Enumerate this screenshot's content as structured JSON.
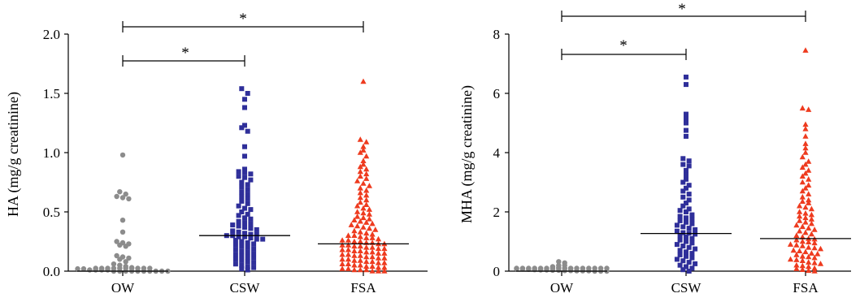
{
  "figure": {
    "panels": [
      {
        "ylabel": "HA (mg/g creatinine)",
        "categories": [
          "OW",
          "CSW",
          "FSA"
        ],
        "yticks": [
          "0.0",
          "0.5",
          "1.0",
          "1.5",
          "2.0"
        ],
        "significance": [
          {
            "from": "OW",
            "to": "FSA",
            "label": "*"
          },
          {
            "from": "OW",
            "to": "CSW",
            "label": "*"
          }
        ]
      },
      {
        "ylabel": "MHA (mg/g creatinine)",
        "categories": [
          "OW",
          "CSW",
          "FSA"
        ],
        "yticks": [
          "0",
          "2",
          "4",
          "6",
          "8"
        ],
        "significance": [
          {
            "from": "OW",
            "to": "FSA",
            "label": "*"
          },
          {
            "from": "OW",
            "to": "CSW",
            "label": "*"
          }
        ]
      }
    ]
  },
  "chart_data": [
    {
      "type": "scatter",
      "title": "",
      "xlabel": "",
      "ylabel": "HA (mg/g creatinine)",
      "ylim": [
        0,
        2.0
      ],
      "categories": [
        "OW",
        "CSW",
        "FSA"
      ],
      "series_colors": {
        "OW": "#8c8c8c",
        "CSW": "#2f2f9a",
        "FSA": "#ee3b1f"
      },
      "markers": {
        "OW": "circle",
        "CSW": "square",
        "FSA": "triangle"
      },
      "series": [
        {
          "category": "OW",
          "median": 0.0,
          "values": [
            0.98,
            0.67,
            0.65,
            0.63,
            0.62,
            0.61,
            0.43,
            0.33,
            0.25,
            0.24,
            0.23,
            0.22,
            0.21,
            0.13,
            0.12,
            0.11,
            0.1,
            0.08,
            0.06,
            0.05,
            0.04,
            0.03,
            0.02,
            0.02,
            0.01,
            0.01,
            0.01,
            0.01,
            0.0,
            0.0,
            0.0,
            0.0,
            0.0,
            0.0,
            0.0,
            0.0,
            0.0,
            0.0,
            0.0,
            0.0,
            0.0,
            0.0,
            0.0,
            0.0,
            0.0,
            0.0,
            0.0,
            0.0
          ]
        },
        {
          "category": "CSW",
          "median": 0.3,
          "values": [
            1.54,
            1.5,
            1.45,
            1.38,
            1.23,
            1.21,
            1.18,
            1.05,
            0.97,
            0.86,
            0.84,
            0.83,
            0.82,
            0.8,
            0.79,
            0.77,
            0.75,
            0.73,
            0.71,
            0.69,
            0.67,
            0.65,
            0.63,
            0.61,
            0.59,
            0.57,
            0.55,
            0.53,
            0.52,
            0.5,
            0.48,
            0.47,
            0.45,
            0.44,
            0.42,
            0.41,
            0.4,
            0.39,
            0.38,
            0.37,
            0.36,
            0.35,
            0.34,
            0.33,
            0.32,
            0.31,
            0.31,
            0.3,
            0.3,
            0.29,
            0.29,
            0.28,
            0.27,
            0.27,
            0.26,
            0.25,
            0.24,
            0.23,
            0.22,
            0.21,
            0.2,
            0.19,
            0.18,
            0.17,
            0.16,
            0.15,
            0.14,
            0.13,
            0.12,
            0.11,
            0.1,
            0.09,
            0.08,
            0.07,
            0.06,
            0.05,
            0.04,
            0.03,
            0.02,
            0.01
          ]
        },
        {
          "category": "FSA",
          "median": 0.23,
          "values": [
            1.6,
            1.11,
            1.09,
            1.05,
            1.02,
            1.0,
            0.97,
            0.93,
            0.9,
            0.88,
            0.86,
            0.84,
            0.82,
            0.8,
            0.78,
            0.76,
            0.74,
            0.72,
            0.7,
            0.68,
            0.66,
            0.64,
            0.62,
            0.6,
            0.58,
            0.56,
            0.55,
            0.53,
            0.52,
            0.5,
            0.49,
            0.48,
            0.46,
            0.45,
            0.44,
            0.43,
            0.42,
            0.41,
            0.4,
            0.39,
            0.38,
            0.37,
            0.36,
            0.35,
            0.34,
            0.33,
            0.32,
            0.31,
            0.3,
            0.3,
            0.29,
            0.28,
            0.28,
            0.27,
            0.26,
            0.26,
            0.25,
            0.25,
            0.24,
            0.24,
            0.23,
            0.23,
            0.22,
            0.22,
            0.21,
            0.21,
            0.2,
            0.2,
            0.19,
            0.19,
            0.18,
            0.18,
            0.17,
            0.17,
            0.16,
            0.16,
            0.15,
            0.15,
            0.14,
            0.14,
            0.13,
            0.13,
            0.12,
            0.12,
            0.11,
            0.11,
            0.1,
            0.1,
            0.09,
            0.09,
            0.08,
            0.08,
            0.07,
            0.07,
            0.06,
            0.06,
            0.05,
            0.05,
            0.04,
            0.04,
            0.03,
            0.03,
            0.02,
            0.02,
            0.01,
            0.01,
            0.01,
            0.0,
            0.0,
            0.0
          ]
        }
      ]
    },
    {
      "type": "scatter",
      "title": "",
      "xlabel": "",
      "ylabel": "MHA (mg/g creatinine)",
      "ylim": [
        0,
        8
      ],
      "categories": [
        "OW",
        "CSW",
        "FSA"
      ],
      "series_colors": {
        "OW": "#8c8c8c",
        "CSW": "#2f2f9a",
        "FSA": "#ee3b1f"
      },
      "markers": {
        "OW": "circle",
        "CSW": "square",
        "FSA": "triangle"
      },
      "series": [
        {
          "category": "OW",
          "median": 0.0,
          "values": [
            0.32,
            0.28,
            0.15,
            0.12,
            0.1,
            0.09,
            0.08,
            0.07,
            0.06,
            0.05,
            0.04,
            0.04,
            0.03,
            0.03,
            0.02,
            0.02,
            0.01,
            0.01,
            0.01,
            0.0,
            0.0,
            0.0,
            0.0,
            0.0,
            0.0,
            0.0,
            0.0,
            0.0,
            0.0,
            0.0,
            0.0,
            0.0,
            0.0,
            0.0,
            0.0,
            0.0,
            0.0,
            0.0,
            0.0,
            0.0
          ]
        },
        {
          "category": "CSW",
          "median": 1.27,
          "values": [
            6.55,
            6.3,
            5.3,
            5.15,
            5.0,
            4.75,
            4.55,
            3.8,
            3.72,
            3.6,
            3.55,
            3.4,
            3.25,
            3.1,
            3.0,
            2.9,
            2.8,
            2.7,
            2.6,
            2.5,
            2.4,
            2.3,
            2.2,
            2.1,
            2.05,
            2.0,
            1.9,
            1.85,
            1.8,
            1.75,
            1.7,
            1.65,
            1.6,
            1.55,
            1.5,
            1.45,
            1.4,
            1.35,
            1.3,
            1.28,
            1.25,
            1.2,
            1.15,
            1.1,
            1.05,
            1.0,
            0.95,
            0.9,
            0.85,
            0.8,
            0.75,
            0.7,
            0.65,
            0.6,
            0.55,
            0.5,
            0.45,
            0.4,
            0.35,
            0.3,
            0.25,
            0.2,
            0.15,
            0.1,
            0.05,
            0.0
          ]
        },
        {
          "category": "FSA",
          "median": 1.1,
          "values": [
            7.45,
            5.5,
            5.45,
            4.95,
            4.8,
            4.55,
            4.3,
            4.15,
            4.0,
            3.85,
            3.7,
            3.6,
            3.5,
            3.4,
            3.3,
            3.2,
            3.1,
            3.0,
            2.9,
            2.8,
            2.7,
            2.6,
            2.5,
            2.4,
            2.35,
            2.3,
            2.2,
            2.15,
            2.1,
            2.0,
            1.95,
            1.9,
            1.85,
            1.8,
            1.75,
            1.7,
            1.65,
            1.6,
            1.55,
            1.5,
            1.45,
            1.4,
            1.35,
            1.3,
            1.25,
            1.2,
            1.15,
            1.1,
            1.08,
            1.05,
            1.0,
            0.98,
            0.95,
            0.9,
            0.88,
            0.85,
            0.8,
            0.78,
            0.75,
            0.7,
            0.68,
            0.65,
            0.6,
            0.58,
            0.55,
            0.5,
            0.48,
            0.45,
            0.4,
            0.38,
            0.35,
            0.3,
            0.28,
            0.25,
            0.2,
            0.18,
            0.15,
            0.1,
            0.08,
            0.05,
            0.02,
            0.0
          ]
        }
      ]
    }
  ]
}
